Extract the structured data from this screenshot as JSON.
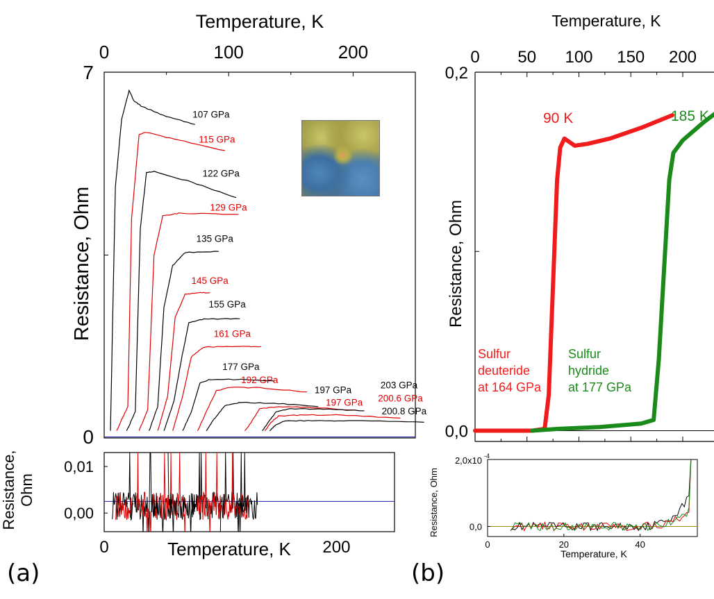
{
  "chart_data": [
    {
      "id": "a_main",
      "type": "line",
      "ylabel": "Resistance, Ohm",
      "x2label": "Temperature, K",
      "xlim": [
        0,
        250
      ],
      "ylim": [
        0,
        7
      ],
      "x_ticks": [
        "0",
        "100",
        "200"
      ],
      "y_ticks": [
        "0",
        "7"
      ],
      "series": [
        {
          "name": "107 GPa",
          "color": "#000000",
          "values": [
            [
              5,
              0.13
            ],
            [
              9,
              4.8
            ],
            [
              14,
              6.1
            ],
            [
              20,
              6.65
            ],
            [
              24,
              6.45
            ],
            [
              30,
              6.35
            ],
            [
              50,
              6.15
            ],
            [
              73,
              6.0
            ]
          ],
          "label_at": [
            71,
            6.13
          ]
        },
        {
          "name": "115 GPa",
          "color": "#e00000",
          "values": [
            [
              10,
              0.13
            ],
            [
              15,
              0.4
            ],
            [
              19,
              0.6
            ],
            [
              22,
              4.2
            ],
            [
              28,
              5.8
            ],
            [
              33,
              5.85
            ],
            [
              60,
              5.7
            ],
            [
              97,
              5.5
            ]
          ],
          "label_at": [
            76,
            5.65
          ]
        },
        {
          "name": "122 GPa",
          "color": "#000000",
          "values": [
            [
              18,
              0.13
            ],
            [
              25,
              0.5
            ],
            [
              29,
              4.0
            ],
            [
              34,
              5.08
            ],
            [
              40,
              5.1
            ],
            [
              70,
              4.9
            ],
            [
              106,
              4.6
            ]
          ],
          "label_at": [
            79,
            5.0
          ]
        },
        {
          "name": "129 GPa",
          "color": "#e00000",
          "values": [
            [
              28,
              0.13
            ],
            [
              35,
              0.55
            ],
            [
              40,
              3.5
            ],
            [
              47,
              4.25
            ],
            [
              60,
              4.3
            ],
            [
              108,
              4.28
            ]
          ],
          "label_at": [
            85,
            4.35
          ]
        },
        {
          "name": "135 GPa",
          "color": "#000000",
          "values": [
            [
              36,
              0.13
            ],
            [
              43,
              0.6
            ],
            [
              48,
              2.5
            ],
            [
              55,
              3.3
            ],
            [
              65,
              3.55
            ],
            [
              92,
              3.57
            ]
          ],
          "label_at": [
            74,
            3.75
          ]
        },
        {
          "name": "145 GPa",
          "color": "#e00000",
          "values": [
            [
              43,
              0.13
            ],
            [
              51,
              0.8
            ],
            [
              57,
              2.3
            ],
            [
              65,
              2.75
            ],
            [
              75,
              2.78
            ],
            [
              85,
              2.78
            ]
          ],
          "label_at": [
            70,
            2.95
          ]
        },
        {
          "name": "155 GPa",
          "color": "#000000",
          "values": [
            [
              48,
              0.13
            ],
            [
              56,
              0.7
            ],
            [
              62,
              1.5
            ],
            [
              68,
              2.2
            ],
            [
              80,
              2.28
            ],
            [
              109,
              2.28
            ]
          ],
          "label_at": [
            84,
            2.5
          ]
        },
        {
          "name": "161 GPa",
          "color": "#e00000",
          "values": [
            [
              55,
              0.13
            ],
            [
              63,
              0.8
            ],
            [
              70,
              1.55
            ],
            [
              80,
              1.74
            ],
            [
              110,
              1.75
            ],
            [
              126,
              1.75
            ]
          ],
          "label_at": [
            88,
            1.93
          ]
        },
        {
          "name": "177 GPa",
          "color": "#000000",
          "values": [
            [
              63,
              0.13
            ],
            [
              70,
              0.5
            ],
            [
              77,
              1.05
            ],
            [
              85,
              1.12
            ],
            [
              110,
              1.12
            ],
            [
              137,
              1.09
            ]
          ],
          "label_at": [
            95,
            1.3
          ]
        },
        {
          "name": "192 GPa",
          "color": "#e00000",
          "values": [
            [
              75,
              0.13
            ],
            [
              82,
              0.5
            ],
            [
              90,
              0.9
            ],
            [
              100,
              0.97
            ],
            [
              125,
              0.96
            ],
            [
              163,
              0.88
            ]
          ],
          "label_at": [
            110,
            1.05
          ]
        },
        {
          "name": "197 GPa",
          "color": "#000000",
          "values": [
            [
              82,
              0.13
            ],
            [
              88,
              0.35
            ],
            [
              97,
              0.62
            ],
            [
              110,
              0.68
            ],
            [
              140,
              0.66
            ],
            [
              172,
              0.6
            ]
          ],
          "label_at": [
            169,
            0.86
          ]
        },
        {
          "name": "197 GPa",
          "color": "#e00000",
          "values": [
            [
              113,
              0.13
            ],
            [
              118,
              0.3
            ],
            [
              125,
              0.56
            ],
            [
              140,
              0.6
            ],
            [
              170,
              0.58
            ],
            [
              205,
              0.52
            ]
          ],
          "label_at": [
            178,
            0.62
          ]
        },
        {
          "name": "200.6 GPa",
          "color": "#e00000",
          "values": [
            [
              129,
              0.13
            ],
            [
              134,
              0.3
            ],
            [
              140,
              0.42
            ],
            [
              160,
              0.44
            ],
            [
              190,
              0.44
            ],
            [
              238,
              0.38
            ]
          ],
          "label_at": [
            220,
            0.7
          ]
        },
        {
          "name": "200.8 GPa",
          "color": "#000000",
          "values": [
            [
              133,
              0.13
            ],
            [
              138,
              0.25
            ],
            [
              145,
              0.33
            ],
            [
              170,
              0.33
            ],
            [
              200,
              0.33
            ],
            [
              257,
              0.3
            ]
          ],
          "label_at": [
            223,
            0.45
          ]
        },
        {
          "name": "203 GPa",
          "color": "#000000",
          "values": [
            [
              127,
              0.13
            ],
            [
              132,
              0.3
            ],
            [
              138,
              0.5
            ],
            [
              150,
              0.56
            ],
            [
              180,
              0.55
            ],
            [
              209,
              0.52
            ]
          ],
          "label_at": [
            222,
            0.95
          ]
        }
      ],
      "baseline": {
        "y": 0.02,
        "color": "#1f1fb0"
      }
    },
    {
      "id": "a_inset",
      "type": "line",
      "xlabel": "Temperature, K",
      "ylabel": "Resistance, Ohm",
      "ylabel_lines": [
        "Resistance,",
        "Ohm"
      ],
      "xlim": [
        0,
        250
      ],
      "ylim": [
        -0.004,
        0.013
      ],
      "x_ticks": [
        "0",
        "200"
      ],
      "y_ticks": [
        "0,00",
        "0,01"
      ],
      "baseline": {
        "y": 0.0025,
        "color": "#1f1fb0"
      },
      "noise_range_x": [
        5,
        130
      ]
    },
    {
      "id": "b_main",
      "type": "line",
      "ylabel": "Resistance, Ohm",
      "x2label": "Temperature, K",
      "xlim": [
        0,
        250
      ],
      "ylim": [
        -0.006,
        0.2
      ],
      "x_ticks": [
        "0",
        "50",
        "100",
        "150",
        "200"
      ],
      "y_ticks": [
        "0,0",
        "0,2"
      ],
      "series": [
        {
          "name": "Sulfur deuteride at 164 GPa",
          "color": "#f01c1c",
          "label_lines": [
            "Sulfur",
            "deuteride",
            "at 164 GPa"
          ],
          "tc_label": "90 K",
          "values": [
            [
              0,
              0.0
            ],
            [
              55,
              0.0
            ],
            [
              67,
              0.001
            ],
            [
              71,
              0.02
            ],
            [
              75,
              0.08
            ],
            [
              79,
              0.14
            ],
            [
              82,
              0.158
            ],
            [
              86,
              0.163
            ],
            [
              91,
              0.161
            ],
            [
              96,
              0.159
            ],
            [
              108,
              0.16
            ],
            [
              130,
              0.163
            ],
            [
              160,
              0.169
            ],
            [
              190,
              0.176
            ]
          ]
        },
        {
          "name": "Sulfur hydride at 177 GPa",
          "color": "#1a8a1a",
          "label_lines": [
            "Sulfur",
            "hydride",
            "at 177 GPa"
          ],
          "tc_label": "185 K",
          "values": [
            [
              55,
              0.0
            ],
            [
              80,
              0.001
            ],
            [
              120,
              0.002
            ],
            [
              160,
              0.004
            ],
            [
              172,
              0.006
            ],
            [
              177,
              0.04
            ],
            [
              183,
              0.1
            ],
            [
              187,
              0.14
            ],
            [
              191,
              0.155
            ],
            [
              200,
              0.162
            ],
            [
              220,
              0.172
            ],
            [
              245,
              0.183
            ]
          ]
        }
      ]
    },
    {
      "id": "b_inset",
      "type": "line",
      "xlabel": "Temperature, K",
      "ylabel": "Resistance, Ohm",
      "xlim": [
        0,
        55
      ],
      "ylim": [
        -3e-05,
        0.0002
      ],
      "x_ticks": [
        "0",
        "20",
        "40"
      ],
      "y_ticks": [
        "0,0",
        "2,0x10"
      ],
      "y_tick_exp": "-4",
      "baseline": {
        "y": 0,
        "color": "#9a8a00"
      },
      "series_colors": [
        "#000000",
        "#e00000",
        "#1a8a1a"
      ]
    }
  ],
  "panel_labels": {
    "a": "(a)",
    "b": "(b)"
  },
  "colors": {
    "red": "#e00000",
    "black": "#000000",
    "green": "#1a8a1a",
    "blue": "#1f1fb0"
  }
}
